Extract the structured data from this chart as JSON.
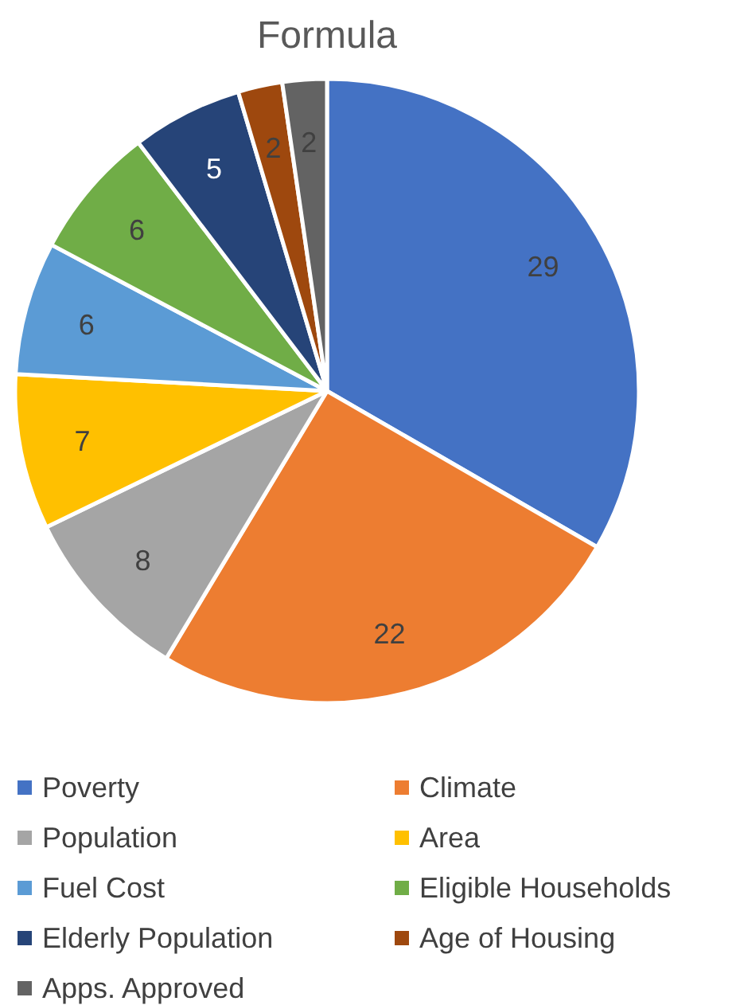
{
  "chart_data": {
    "type": "pie",
    "title": "Formula",
    "categories": [
      "Poverty",
      "Climate",
      "Population",
      "Area",
      "Fuel Cost",
      "Eligible Households",
      "Elderly Population",
      "Age of Housing",
      "Apps. Approved"
    ],
    "values": [
      29,
      22,
      8,
      7,
      6,
      6,
      5,
      2,
      2
    ],
    "colors": [
      "#4472c4",
      "#ed7d31",
      "#a5a5a5",
      "#ffc000",
      "#5b9bd5",
      "#70ad47",
      "#264478",
      "#9e480e",
      "#636363"
    ],
    "data_labels": true,
    "legend": "bottom"
  }
}
